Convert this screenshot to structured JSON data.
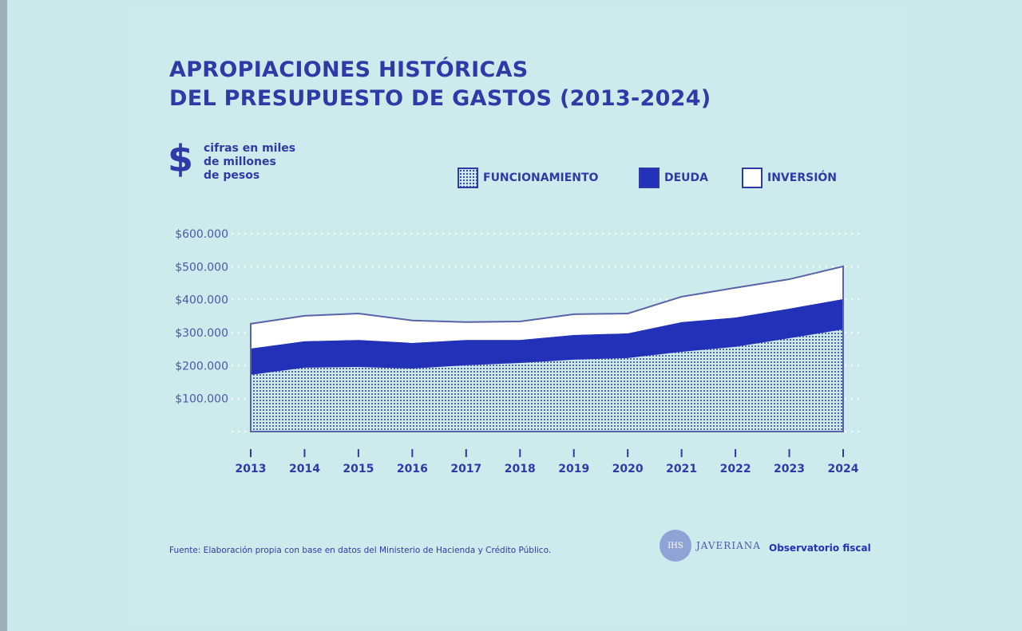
{
  "title_line1": "APROPIACIONES HISTÓRICAS",
  "title_line2": "DEL PRESUPUESTO DE GASTOS (2013-2024)",
  "unit_symbol": "$",
  "unit_lines": [
    "cifras en miles",
    "de millones",
    "de pesos"
  ],
  "source": "Fuente: Elaboración propia con base en datos del Ministerio de Hacienda y Crédito Público.",
  "logos": {
    "javeriana": "JAVERIANA",
    "crest": "IHS",
    "observatorio": "Observatorio fiscal"
  },
  "colors": {
    "primary": "#2e3ba6",
    "deuda": "#2330b8",
    "inversion": "#ffffff",
    "background": "#cbe9ea"
  },
  "chart_data": {
    "type": "area",
    "stacked": true,
    "title": "APROPIACIONES HISTÓRICAS DEL PRESUPUESTO DE GASTOS (2013-2024)",
    "ylabel": "cifras en miles de millones de pesos",
    "categories": [
      "2013",
      "2014",
      "2015",
      "2016",
      "2017",
      "2018",
      "2019",
      "2020",
      "2021",
      "2022",
      "2023",
      "2024"
    ],
    "yticks": [
      100000,
      200000,
      300000,
      400000,
      500000,
      600000
    ],
    "ytick_labels": [
      "$100.000",
      "$200.000",
      "$300.000",
      "$400.000",
      "$500.000",
      "$600.000"
    ],
    "ylim": [
      0,
      600000
    ],
    "grid": true,
    "legend_position": "top-right",
    "series": [
      {
        "name": "FUNCIONAMIENTO",
        "values": [
          172000,
          194000,
          196000,
          191000,
          201000,
          208000,
          218000,
          223000,
          242000,
          257000,
          283000,
          310000
        ]
      },
      {
        "name": "DEUDA",
        "values": [
          80000,
          80000,
          82000,
          78000,
          77000,
          70000,
          75000,
          75000,
          90000,
          89000,
          90000,
          92000
        ]
      },
      {
        "name": "INVERSIÓN",
        "values": [
          75000,
          77000,
          80000,
          68000,
          54000,
          56000,
          63000,
          60000,
          77000,
          90000,
          89000,
          99000
        ]
      }
    ]
  }
}
